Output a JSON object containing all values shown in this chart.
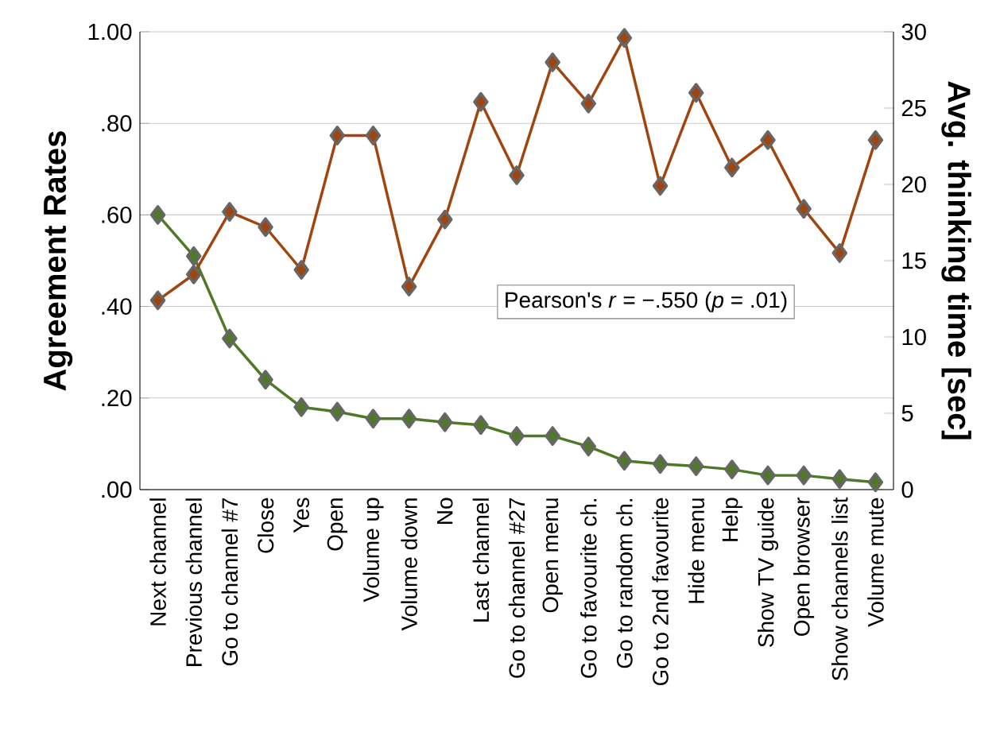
{
  "chart_data": {
    "type": "line",
    "categories": [
      "Next channel",
      "Previous channel",
      "Go to channel #7",
      "Close",
      "Yes",
      "Open",
      "Volume up",
      "Volume down",
      "No",
      "Last channel",
      "Go to channel #27",
      "Open menu",
      "Go to favourite ch.",
      "Go to random ch.",
      "Go to 2nd favourite",
      "Hide menu",
      "Help",
      "Show TV guide",
      "Open browser",
      "Show channels list",
      "Volume mute"
    ],
    "series": [
      {
        "color": "#4e7a27",
        "values": [
          0.6,
          0.51,
          0.33,
          0.24,
          0.18,
          0.17,
          0.155,
          0.155,
          0.147,
          0.141,
          0.117,
          0.117,
          0.094,
          0.063,
          0.056,
          0.051,
          0.044,
          0.031,
          0.031,
          0.023,
          0.016
        ]
      },
      {
        "color": "#a0450f",
        "axis": "y2",
        "values": [
          12.4,
          14.1,
          18.2,
          17.2,
          14.4,
          23.2,
          23.2,
          13.3,
          17.7,
          25.4,
          20.6,
          28.0,
          25.3,
          29.6,
          19.9,
          26.0,
          21.1,
          22.9,
          18.4,
          15.5,
          22.9
        ]
      }
    ],
    "ylabel": "Agreement Rates",
    "y2label": "Avg. thinking time [sec]",
    "ylim": [
      0,
      1
    ],
    "yticks": [
      {
        "value": 0,
        "label": ".00"
      },
      {
        "value": 0.2,
        "label": ".20"
      },
      {
        "value": 0.4,
        "label": ".40"
      },
      {
        "value": 0.6,
        "label": ".60"
      },
      {
        "value": 0.8,
        "label": ".80"
      },
      {
        "value": 1,
        "label": "1.00"
      }
    ],
    "y2lim": [
      0,
      30
    ],
    "y2ticks": [
      0,
      5,
      10,
      15,
      20,
      25,
      30
    ],
    "annotations": [
      "Pearson's *r* = −.550 (*p* = .01)"
    ],
    "grid": "y",
    "marker": "diamond",
    "line_style": "solid"
  }
}
